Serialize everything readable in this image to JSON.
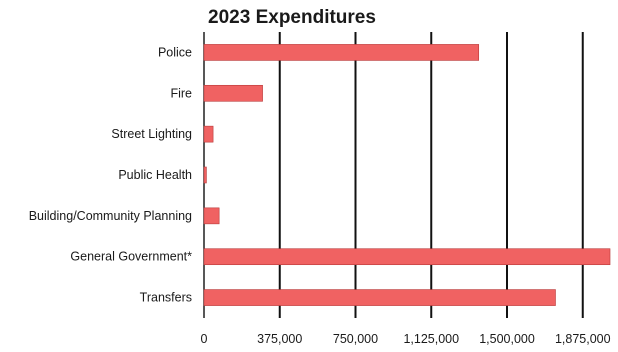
{
  "chart_data": {
    "type": "bar",
    "orientation": "horizontal",
    "title": "2023 Expenditures",
    "categories": [
      "Police",
      "Fire",
      "Street Lighting",
      "Public Health",
      "Building/Community Planning",
      "General Government*",
      "Transfers"
    ],
    "values": [
      1360000,
      290000,
      45000,
      12000,
      75000,
      2010000,
      1740000
    ],
    "xlim": [
      0,
      2000000
    ],
    "x_ticks": [
      0,
      375000,
      750000,
      1125000,
      1500000,
      1875000
    ],
    "x_tick_labels": [
      "0",
      "375,000",
      "750,000",
      "1,125,000",
      "1,500,000",
      "1,875,000"
    ],
    "xlabel": "",
    "ylabel": "",
    "grid": "vertical",
    "legend": "none",
    "bar_color": "#f06262",
    "bar_edge_color": "#b83a3a",
    "grid_color": "#111111"
  }
}
